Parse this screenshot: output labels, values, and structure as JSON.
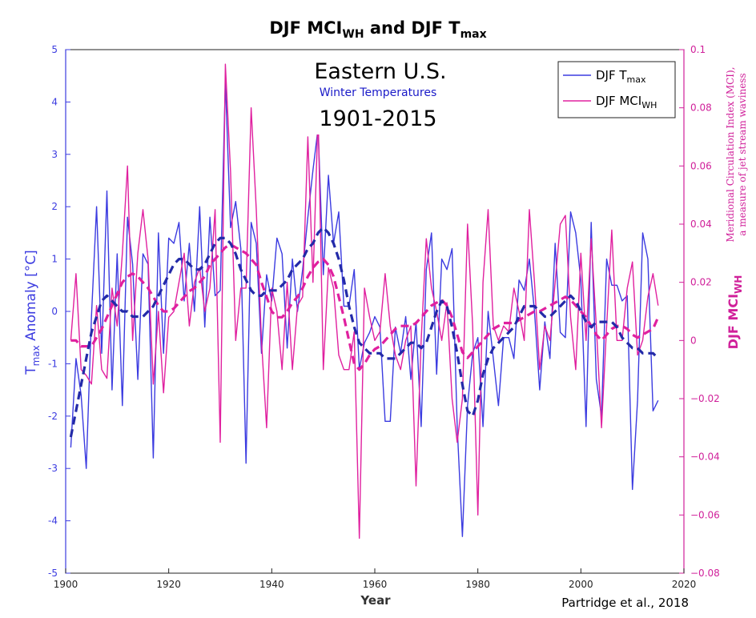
{
  "chart_data": {
    "type": "line",
    "title": {
      "prefix": "DJF MCI",
      "sub1": "WH",
      "middle": " and DJF T",
      "sub2": "max"
    },
    "annotation": {
      "region": "Eastern U.S.",
      "subtitle": "Winter Temperatures",
      "years": "1901-2015"
    },
    "credit": "Partridge et al., 2018",
    "xlabel": "Year",
    "ylabel_left": {
      "main": "T",
      "sub": "max",
      "rest": " Anomaly [°C]"
    },
    "ylabel_right": {
      "main": "DJF MCI",
      "sub": "WH"
    },
    "ylabel_right_note": [
      "Meridional Circulation Index (MCI),",
      "a measure of jet stream waviness"
    ],
    "xlim": [
      1900,
      2020
    ],
    "ylim_left": [
      -5,
      5
    ],
    "ylim_right": [
      -0.08,
      0.1
    ],
    "x_ticks": [
      1900,
      1920,
      1940,
      1960,
      1980,
      2000,
      2020
    ],
    "y_ticks_left": [
      -5,
      -4,
      -3,
      -2,
      -1,
      0,
      1,
      2,
      3,
      4,
      5
    ],
    "y_ticks_right": [
      -0.08,
      -0.06,
      -0.04,
      -0.02,
      0,
      0.02,
      0.04,
      0.06,
      0.08,
      0.1
    ],
    "y_tick_labels_right": [
      "−0.08",
      "−0.06",
      "−0.04",
      "−0.02",
      "0",
      "0.02",
      "0.04",
      "0.06",
      "0.08",
      "0.1"
    ],
    "legend": [
      {
        "label": "DJF T",
        "sub": "max",
        "color": "#3b3be0"
      },
      {
        "label": "DJF MCI",
        "sub": "WH",
        "color": "#e0209f"
      }
    ],
    "colors": {
      "tmax": "#3b3be0",
      "mci": "#e0209f",
      "tmax_smooth": "#232aa8",
      "mci_smooth": "#e0209f",
      "left_axis": "#3b3be0",
      "right_axis": "#d0209a"
    },
    "series": [
      {
        "name": "DJF Tmax",
        "axis": "left",
        "x_start": 1901,
        "values": [
          -2.6,
          -0.9,
          -1.6,
          -3.0,
          -0.1,
          2.0,
          -0.8,
          2.3,
          -1.5,
          1.1,
          -1.8,
          1.8,
          0.9,
          -1.3,
          1.1,
          0.9,
          -2.8,
          1.5,
          -0.8,
          1.4,
          1.3,
          1.7,
          0.2,
          1.3,
          0.0,
          2.0,
          -0.3,
          1.8,
          0.3,
          0.4,
          4.4,
          1.6,
          2.1,
          1.2,
          -2.9,
          1.7,
          1.3,
          -0.8,
          0.7,
          0.2,
          1.4,
          1.1,
          -0.7,
          1.0,
          0.0,
          0.8,
          1.8,
          2.7,
          3.5,
          0.7,
          2.6,
          1.3,
          1.9,
          0.1,
          0.1,
          0.8,
          -1.1,
          -0.6,
          -0.4,
          -0.1,
          -0.3,
          -2.1,
          -2.1,
          -0.3,
          -0.8,
          -0.1,
          -1.3,
          -0.2,
          -2.2,
          0.8,
          1.5,
          -1.2,
          1.0,
          0.8,
          1.2,
          -2.2,
          -4.3,
          -1.8,
          -0.8,
          -0.5,
          -2.2,
          0.0,
          -0.9,
          -1.8,
          -0.5,
          -0.5,
          -0.9,
          0.6,
          0.4,
          1.0,
          0.0,
          -1.5,
          -0.2,
          -0.9,
          1.3,
          -0.4,
          -0.5,
          1.9,
          1.5,
          0.6,
          -2.2,
          1.7,
          -1.3,
          -2.0,
          1.0,
          0.5,
          0.5,
          0.2,
          0.3,
          -3.4,
          -1.7,
          1.5,
          1.0,
          -1.9,
          -1.7
        ]
      },
      {
        "name": "DJF MCIWH",
        "axis": "right",
        "x_start": 1901,
        "values": [
          0.0,
          0.023,
          -0.01,
          -0.012,
          -0.015,
          0.012,
          -0.01,
          -0.013,
          0.018,
          0.005,
          0.03,
          0.06,
          0.0,
          0.03,
          0.045,
          0.028,
          -0.015,
          0.01,
          -0.018,
          0.008,
          0.01,
          0.02,
          0.03,
          0.005,
          0.02,
          0.025,
          0.01,
          0.018,
          0.045,
          -0.035,
          0.095,
          0.058,
          0.0,
          0.018,
          0.018,
          0.08,
          0.045,
          0.0,
          -0.03,
          0.018,
          0.01,
          -0.01,
          0.02,
          -0.01,
          0.012,
          0.015,
          0.07,
          0.02,
          0.078,
          -0.01,
          0.025,
          0.018,
          -0.005,
          -0.01,
          -0.01,
          0.003,
          -0.068,
          0.018,
          0.008,
          0.0,
          0.003,
          0.023,
          0.005,
          -0.005,
          -0.01,
          0.0,
          0.005,
          -0.05,
          0.0,
          0.035,
          0.018,
          0.01,
          0.0,
          0.013,
          -0.02,
          -0.035,
          -0.02,
          0.04,
          0.005,
          -0.06,
          0.02,
          0.045,
          0.005,
          0.0,
          0.005,
          0.003,
          0.018,
          0.01,
          0.0,
          0.045,
          0.02,
          -0.01,
          0.005,
          0.0,
          0.02,
          0.04,
          0.043,
          0.008,
          -0.01,
          0.03,
          0.0,
          0.035,
          0.005,
          -0.03,
          0.005,
          0.038,
          0.0,
          0.0,
          0.018,
          0.027,
          -0.005,
          0.0,
          0.015,
          0.023,
          0.012
        ]
      },
      {
        "name": "DJF Tmax 10-yr smooth",
        "axis": "left",
        "style": "dashed",
        "x_start": 1901,
        "values": [
          -2.4,
          -1.9,
          -1.4,
          -0.9,
          -0.4,
          -0.1,
          0.2,
          0.3,
          0.2,
          0.1,
          0.0,
          0.0,
          -0.1,
          -0.1,
          -0.1,
          0.0,
          0.1,
          0.3,
          0.5,
          0.7,
          0.9,
          1.0,
          1.0,
          0.9,
          0.8,
          0.8,
          0.9,
          1.1,
          1.3,
          1.4,
          1.4,
          1.3,
          1.1,
          0.8,
          0.6,
          0.4,
          0.3,
          0.3,
          0.4,
          0.4,
          0.4,
          0.5,
          0.6,
          0.8,
          0.9,
          1.0,
          1.2,
          1.3,
          1.5,
          1.6,
          1.5,
          1.3,
          1.0,
          0.6,
          0.1,
          -0.3,
          -0.6,
          -0.7,
          -0.8,
          -0.8,
          -0.8,
          -0.9,
          -0.9,
          -0.9,
          -0.8,
          -0.7,
          -0.6,
          -0.6,
          -0.7,
          -0.6,
          -0.3,
          0.0,
          0.2,
          0.1,
          -0.3,
          -0.8,
          -1.4,
          -1.9,
          -2.0,
          -1.7,
          -1.2,
          -0.9,
          -0.7,
          -0.6,
          -0.5,
          -0.4,
          -0.3,
          -0.1,
          0.1,
          0.1,
          0.1,
          0.0,
          -0.1,
          -0.1,
          0.0,
          0.1,
          0.2,
          0.3,
          0.2,
          0.0,
          -0.2,
          -0.3,
          -0.2,
          -0.2,
          -0.2,
          -0.2,
          -0.3,
          -0.5,
          -0.6,
          -0.7,
          -0.7,
          -0.8,
          -0.8,
          -0.8,
          -0.9
        ]
      },
      {
        "name": "DJF MCIWH 10-yr smooth",
        "axis": "right",
        "style": "dashed",
        "x_start": 1901,
        "values": [
          0.0,
          0.0,
          -0.002,
          -0.002,
          -0.002,
          0.001,
          0.004,
          0.008,
          0.012,
          0.016,
          0.02,
          0.022,
          0.023,
          0.022,
          0.02,
          0.018,
          0.015,
          0.012,
          0.01,
          0.01,
          0.011,
          0.013,
          0.015,
          0.017,
          0.018,
          0.02,
          0.022,
          0.026,
          0.028,
          0.03,
          0.032,
          0.033,
          0.032,
          0.031,
          0.03,
          0.028,
          0.026,
          0.02,
          0.015,
          0.01,
          0.008,
          0.008,
          0.01,
          0.013,
          0.015,
          0.018,
          0.022,
          0.025,
          0.027,
          0.028,
          0.026,
          0.022,
          0.015,
          0.008,
          0.0,
          -0.008,
          -0.01,
          -0.008,
          -0.005,
          -0.003,
          -0.002,
          0.0,
          0.002,
          0.004,
          0.005,
          0.005,
          0.005,
          0.006,
          0.008,
          0.01,
          0.012,
          0.013,
          0.014,
          0.012,
          0.008,
          0.002,
          -0.004,
          -0.006,
          -0.004,
          -0.002,
          0.0,
          0.002,
          0.004,
          0.005,
          0.006,
          0.006,
          0.006,
          0.007,
          0.008,
          0.009,
          0.01,
          0.01,
          0.011,
          0.012,
          0.013,
          0.014,
          0.015,
          0.014,
          0.012,
          0.01,
          0.008,
          0.005,
          0.002,
          0.0,
          0.002,
          0.004,
          0.005,
          0.005,
          0.004,
          0.002,
          0.001,
          0.002,
          0.003,
          0.004,
          0.008
        ]
      }
    ]
  }
}
